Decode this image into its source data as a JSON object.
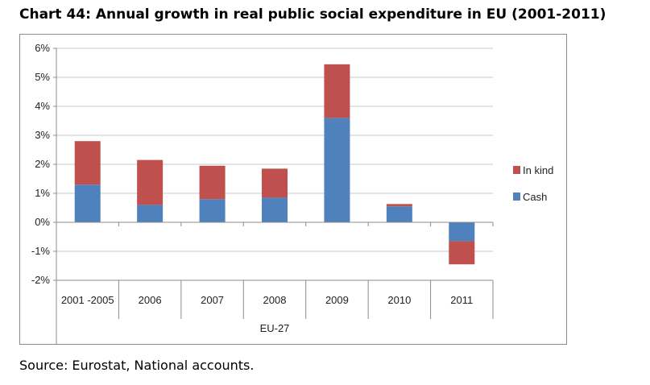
{
  "title": "Chart 44: Annual growth in real public social expenditure in EU (2001-2011)",
  "source": "Source: Eurostat, National accounts.",
  "chart_data": {
    "type": "bar",
    "stacked": true,
    "categories": [
      "2001 -2005",
      "2006",
      "2007",
      "2008",
      "2009",
      "2010",
      "2011"
    ],
    "group_label": "EU-27",
    "series": [
      {
        "name": "Cash",
        "color": "#4f81bd",
        "values": [
          1.3,
          0.6,
          0.8,
          0.85,
          3.6,
          0.55,
          -0.65
        ]
      },
      {
        "name": "In kind",
        "color": "#c0504d",
        "values": [
          1.5,
          1.55,
          1.15,
          1.0,
          1.85,
          0.08,
          -0.8
        ]
      }
    ],
    "ylim": [
      -2,
      6
    ],
    "yticks": [
      -2,
      -1,
      0,
      1,
      2,
      3,
      4,
      5,
      6
    ],
    "ytick_labels": [
      "-2%",
      "-1%",
      "0%",
      "1%",
      "2%",
      "3%",
      "4%",
      "5%",
      "6%"
    ],
    "legend": {
      "position": "right",
      "order": [
        "In kind",
        "Cash"
      ]
    },
    "grid": true
  }
}
